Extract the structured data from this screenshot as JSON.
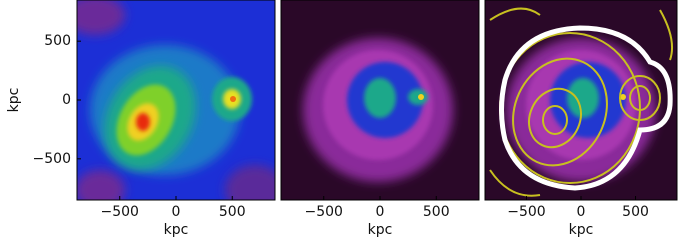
{
  "chart_data": [
    {
      "type": "image",
      "xlabel": "kpc",
      "ylabel": "kpc",
      "xlim": [
        -880,
        880
      ],
      "ylim": [
        -850,
        850
      ],
      "xticks": [
        {
          "value": -500,
          "label": "−500"
        },
        0,
        500
      ],
      "yticks": [
        {
          "value": -500,
          "label": "−500"
        },
        0,
        500
      ]
    },
    {
      "type": "image",
      "xlabel": "kpc",
      "xlim": [
        -880,
        880
      ],
      "ylim": [
        -850,
        850
      ],
      "xticks": [
        {
          "value": -500,
          "label": "−500"
        },
        0,
        500
      ]
    },
    {
      "type": "image",
      "xlabel": "kpc",
      "xlim": [
        -880,
        880
      ],
      "ylim": [
        -850,
        850
      ],
      "xticks": [
        {
          "value": -500,
          "label": "−500"
        },
        0,
        500
      ]
    }
  ]
}
